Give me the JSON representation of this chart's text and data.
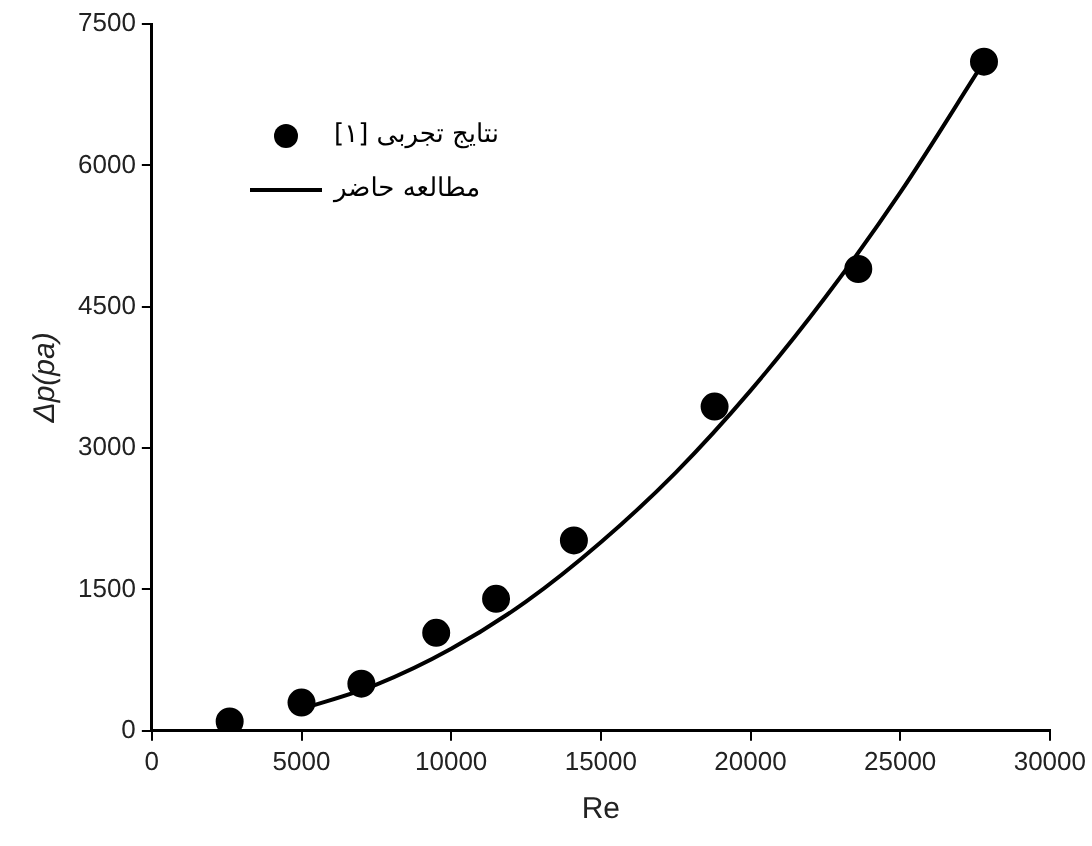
{
  "chart_data": {
    "type": "scatter",
    "xlabel": "Re",
    "ylabel": "Δp(pa)",
    "xlim": [
      0,
      30000
    ],
    "xticks": [
      0,
      5000,
      10000,
      15000,
      20000,
      25000,
      30000
    ],
    "ylim": [
      0,
      7500
    ],
    "yticks": [
      0,
      1500,
      3000,
      4500,
      6000,
      7500
    ],
    "grid": false,
    "legend": "top left",
    "series": [
      {
        "name": "نتایج تجربی [۱]",
        "type": "scatter",
        "marker": "circle",
        "color": "#000000",
        "x": [
          2600,
          5000,
          7000,
          9500,
          11500,
          14100,
          18800,
          23600,
          27800
        ],
        "values": [
          100,
          300,
          500,
          1040,
          1400,
          2020,
          3440,
          4900,
          7100
        ]
      },
      {
        "name": "مطالعه حاضر",
        "type": "line",
        "marker": "none",
        "line_style": "solid",
        "color": "#000000",
        "x": [
          5000,
          7500,
          10000,
          12500,
          15000,
          17500,
          20000,
          22500,
          25000,
          27800
        ],
        "values": [
          230,
          490,
          870,
          1370,
          2000,
          2740,
          3610,
          4600,
          5710,
          7100
        ]
      }
    ]
  }
}
